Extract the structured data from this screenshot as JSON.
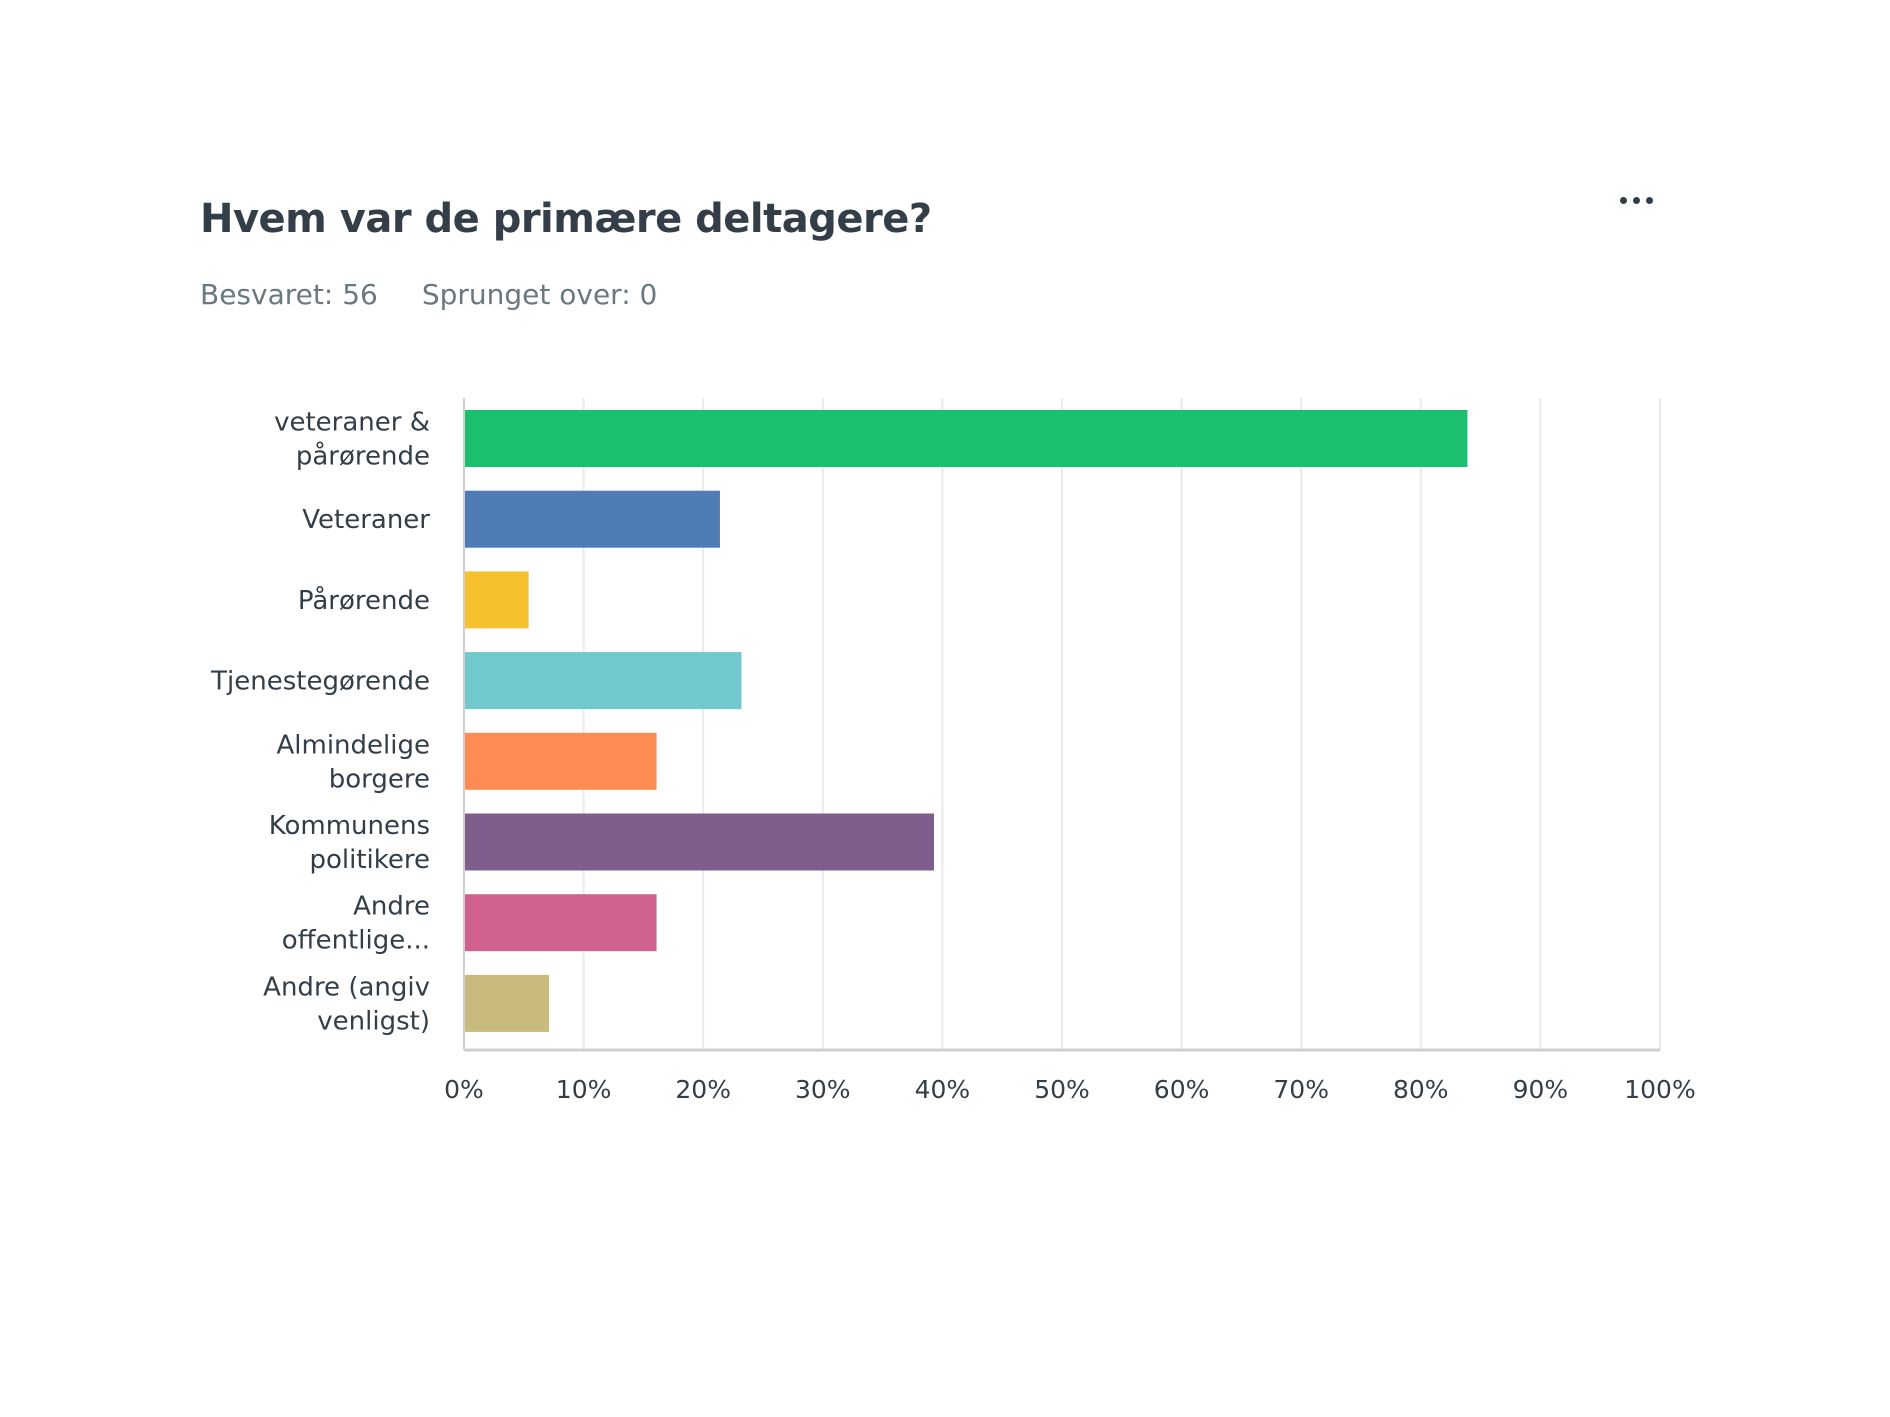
{
  "question": {
    "title": "Hvem var de primære deltagere?",
    "answered": "Besvaret: 56",
    "skipped": "Sprunget over: 0",
    "menu_icon": "more-horizontal-icon"
  },
  "chart_data": {
    "type": "bar",
    "orientation": "horizontal",
    "title": "",
    "xlabel": "",
    "ylabel": "",
    "xlim": [
      0,
      100
    ],
    "unit": "%",
    "grid": true,
    "categories": [
      "veteraner & pårørende",
      "Veteraner",
      "Pårørende",
      "Tjenestegørende",
      "Almindelige borgere",
      "Kommunens politikere",
      "Andre offentlige...",
      "Andre (angiv venligst)"
    ],
    "category_label_lines": [
      [
        "veteraner &",
        "pårørende"
      ],
      [
        "Veteraner"
      ],
      [
        "Pårørende"
      ],
      [
        "Tjenestegørende"
      ],
      [
        "Almindelige",
        "borgere"
      ],
      [
        "Kommunens",
        "politikere"
      ],
      [
        "Andre",
        "offentlige..."
      ],
      [
        "Andre (angiv",
        "venligst)"
      ]
    ],
    "values": [
      83.9,
      21.4,
      5.4,
      23.2,
      16.1,
      39.3,
      16.1,
      7.1
    ],
    "colors": [
      "#1abf6f",
      "#507cb6",
      "#f6c02e",
      "#71c8cd",
      "#fd8c54",
      "#7d5e8c",
      "#d1628f",
      "#c8bb7d"
    ],
    "x_ticks": [
      0,
      10,
      20,
      30,
      40,
      50,
      60,
      70,
      80,
      90,
      100
    ],
    "x_tick_labels": [
      "0%",
      "10%",
      "20%",
      "30%",
      "40%",
      "50%",
      "60%",
      "70%",
      "80%",
      "90%",
      "100%"
    ],
    "gridline_color": "#eaeaea",
    "axis_color": "#d0d0d0"
  }
}
